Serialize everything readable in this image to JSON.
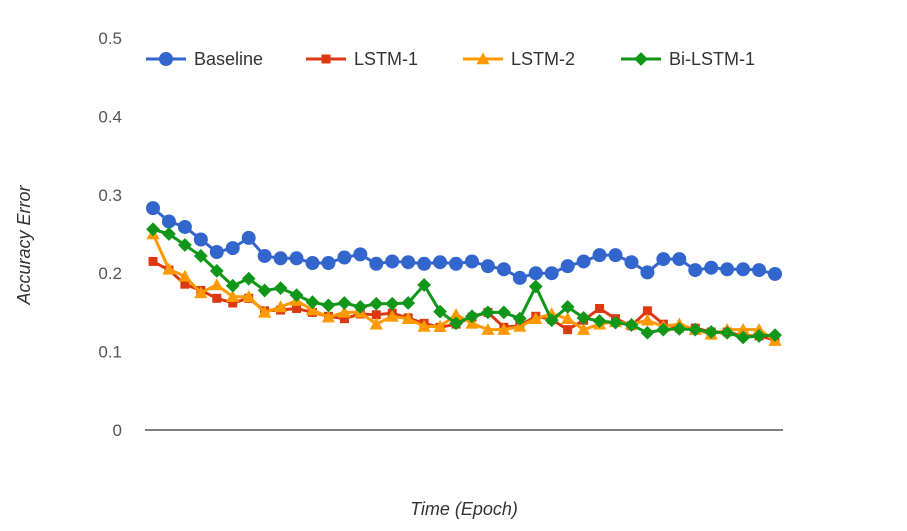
{
  "chart_data": {
    "type": "line",
    "title": "",
    "xlabel": "Time (Epoch)",
    "ylabel": "Accuracy Error",
    "ylim": [
      0,
      0.5
    ],
    "yticks": [
      "0",
      "0.1",
      "0.2",
      "0.3",
      "0.4",
      "0.5"
    ],
    "ytick_values": [
      0,
      0.1,
      0.2,
      0.3,
      0.4,
      0.5
    ],
    "grid": false,
    "legend_position": "top",
    "x": [
      1,
      2,
      3,
      4,
      5,
      6,
      7,
      8,
      9,
      10,
      11,
      12,
      13,
      14,
      15,
      16,
      17,
      18,
      19,
      20,
      21,
      22,
      23,
      24,
      25,
      26,
      27,
      28,
      29,
      30,
      31,
      32,
      33,
      34,
      35,
      36,
      37,
      38,
      39,
      40
    ],
    "series": [
      {
        "name": "Baseline",
        "color": "#3366cc",
        "marker": "circle",
        "values": [
          0.283,
          0.266,
          0.259,
          0.243,
          0.227,
          0.232,
          0.245,
          0.222,
          0.219,
          0.219,
          0.213,
          0.213,
          0.22,
          0.224,
          0.212,
          0.215,
          0.214,
          0.212,
          0.214,
          0.212,
          0.215,
          0.209,
          0.205,
          0.194,
          0.2,
          0.2,
          0.209,
          0.215,
          0.223,
          0.223,
          0.214,
          0.201,
          0.218,
          0.218,
          0.204,
          0.207,
          0.205,
          0.205,
          0.204,
          0.199
        ]
      },
      {
        "name": "LSTM-1",
        "color": "#dc3912",
        "marker": "square",
        "values": [
          0.215,
          0.204,
          0.186,
          0.178,
          0.168,
          0.162,
          0.168,
          0.152,
          0.153,
          0.155,
          0.15,
          0.145,
          0.142,
          0.148,
          0.147,
          0.149,
          0.143,
          0.136,
          0.131,
          0.135,
          0.144,
          0.15,
          0.131,
          0.133,
          0.145,
          0.141,
          0.128,
          0.14,
          0.155,
          0.142,
          0.133,
          0.152,
          0.135,
          0.13,
          0.13,
          0.125,
          0.125,
          0.12,
          0.12,
          0.115
        ]
      },
      {
        "name": "LSTM-2",
        "color": "#ff9900",
        "marker": "triangle",
        "values": [
          0.25,
          0.205,
          0.196,
          0.175,
          0.185,
          0.17,
          0.17,
          0.15,
          0.157,
          0.165,
          0.153,
          0.144,
          0.15,
          0.15,
          0.135,
          0.145,
          0.142,
          0.132,
          0.132,
          0.147,
          0.136,
          0.128,
          0.128,
          0.132,
          0.142,
          0.148,
          0.142,
          0.128,
          0.135,
          0.138,
          0.135,
          0.14,
          0.132,
          0.135,
          0.128,
          0.122,
          0.128,
          0.128,
          0.128,
          0.114
        ]
      },
      {
        "name": "Bi-LSTM-1",
        "color": "#109618",
        "marker": "diamond",
        "values": [
          0.256,
          0.25,
          0.236,
          0.222,
          0.203,
          0.184,
          0.193,
          0.178,
          0.181,
          0.172,
          0.163,
          0.159,
          0.162,
          0.157,
          0.161,
          0.161,
          0.162,
          0.185,
          0.151,
          0.136,
          0.145,
          0.15,
          0.15,
          0.142,
          0.183,
          0.14,
          0.157,
          0.143,
          0.139,
          0.137,
          0.134,
          0.124,
          0.128,
          0.129,
          0.128,
          0.125,
          0.124,
          0.118,
          0.12,
          0.121
        ]
      }
    ]
  }
}
